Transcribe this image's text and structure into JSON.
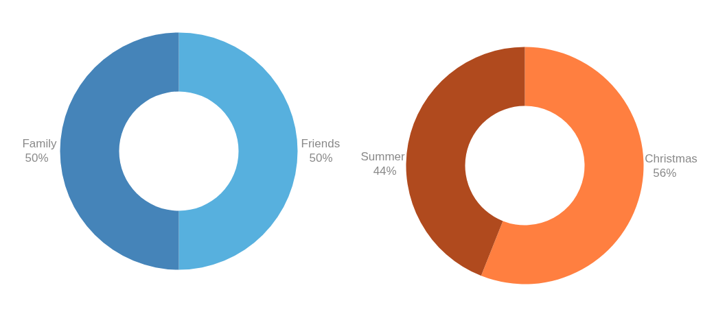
{
  "chart_data": [
    {
      "type": "donut",
      "categories": [
        "Friends",
        "Family"
      ],
      "values": [
        50,
        50
      ],
      "colors": [
        "#57b0de",
        "#4584b9"
      ],
      "value_labels": [
        "50%",
        "50%"
      ]
    },
    {
      "type": "donut",
      "categories": [
        "Christmas",
        "Summer"
      ],
      "values": [
        56,
        44
      ],
      "colors": [
        "#ff7f40",
        "#b04a1e"
      ],
      "value_labels": [
        "56%",
        "44%"
      ]
    }
  ]
}
